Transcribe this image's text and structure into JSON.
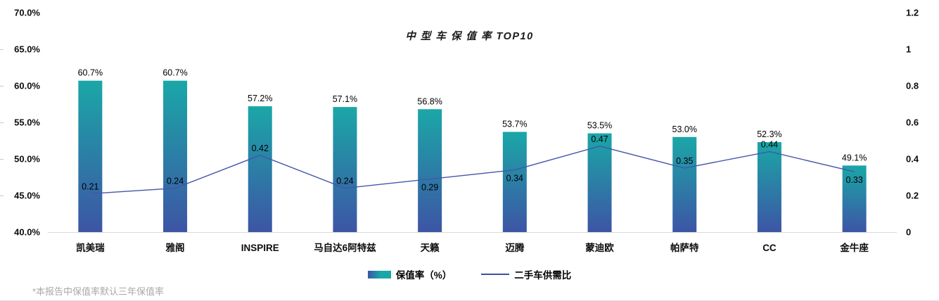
{
  "title": "中 型 车 保 值 率 TOP10",
  "footnote": "*本报告中保值率默认三年保值率",
  "legend": {
    "bar_label": "保值率（%）",
    "line_label": "二手车供需比"
  },
  "colors": {
    "bar_gradient_top": "#1aa7a7",
    "bar_gradient_bottom": "#3d55a5",
    "line": "#4456aa",
    "axis_line": "#d9d9d9",
    "tick_mark": "#c9c9c9",
    "data_label": "#000000",
    "tick_label": "#0d0d0d",
    "footnote": "#a8a8a8"
  },
  "chart_data": {
    "type": "bar",
    "subtype": "combo-bar-line",
    "title": "中 型 车 保 值 率 TOP10",
    "categories": [
      "凯美瑞",
      "雅阁",
      "INSPIRE",
      "马自达6阿特兹",
      "天籁",
      "迈腾",
      "蒙迪欧",
      "帕萨特",
      "CC",
      "金牛座"
    ],
    "series": [
      {
        "name": "保值率（%）",
        "type": "bar",
        "axis": "left",
        "values": [
          60.7,
          60.7,
          57.2,
          57.1,
          56.8,
          53.7,
          53.5,
          53.0,
          52.3,
          49.1
        ],
        "labels": [
          "60.7%",
          "60.7%",
          "57.2%",
          "57.1%",
          "56.8%",
          "53.7%",
          "53.5%",
          "53.0%",
          "52.3%",
          "49.1%"
        ]
      },
      {
        "name": "二手车供需比",
        "type": "line",
        "axis": "right",
        "values": [
          0.21,
          0.24,
          0.42,
          0.24,
          0.29,
          0.34,
          0.47,
          0.35,
          0.44,
          0.33
        ],
        "labels": [
          "0.21",
          "0.24",
          "0.42",
          "0.24",
          "0.29",
          "0.34",
          "0.47",
          "0.35",
          "0.44",
          "0.33"
        ],
        "label_placement": [
          "above",
          "above",
          "above",
          "above",
          "below",
          "below",
          "above",
          "above",
          "above",
          "below"
        ]
      }
    ],
    "axes": {
      "left": {
        "min": 40,
        "max": 70,
        "step": 5,
        "ticks": [
          "70.0%",
          "65.0%",
          "60.0%",
          "55.0%",
          "50.0%",
          "45.0%",
          "40.0%"
        ]
      },
      "right": {
        "min": 0,
        "max": 1.2,
        "step": 0.2,
        "ticks": [
          "1.2",
          "1",
          "0.8",
          "0.6",
          "0.4",
          "0.2",
          "0"
        ]
      }
    },
    "grid": false,
    "legend_position": "bottom"
  }
}
